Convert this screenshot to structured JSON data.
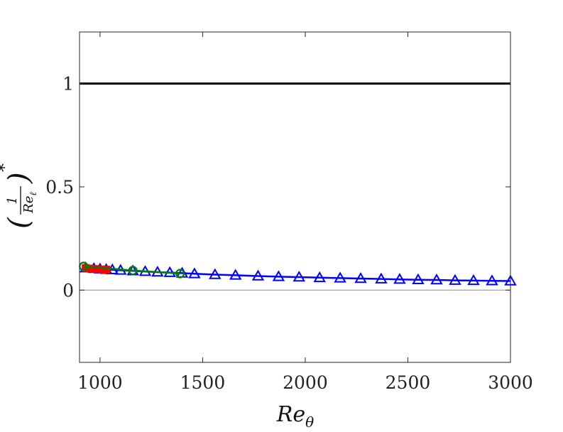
{
  "chart_data": {
    "type": "line",
    "xlabel_base": "Re",
    "xlabel_sub": "θ",
    "ylabel_base": "Re",
    "ylabel_sub": "ℓ",
    "ylabel_num": "1",
    "ylabel_sup": "*",
    "xlim": [
      900,
      3000
    ],
    "ylim": [
      -0.35,
      1.25
    ],
    "x_ticks": [
      1000,
      1500,
      2000,
      2500,
      3000
    ],
    "x_tick_labels": [
      "1000",
      "1500",
      "2000",
      "2500",
      "3000"
    ],
    "y_ticks": [
      0,
      0.5,
      1
    ],
    "y_tick_labels": [
      "0",
      "0.5",
      "1"
    ],
    "grid": false,
    "reference_lines": [
      {
        "y": 1,
        "color": "#000000"
      },
      {
        "y": 0,
        "color": "#888888"
      }
    ],
    "series": [
      {
        "color": "#0000ff",
        "marker": "triangle",
        "x": [
          930,
          970,
          1000,
          1030,
          1060,
          1100,
          1160,
          1220,
          1280,
          1340,
          1400,
          1460,
          1560,
          1660,
          1770,
          1870,
          1970,
          2070,
          2170,
          2270,
          2370,
          2460,
          2550,
          2640,
          2730,
          2820,
          2910,
          3000
        ],
        "y": [
          0.107,
          0.104,
          0.102,
          0.1,
          0.098,
          0.096,
          0.093,
          0.09,
          0.087,
          0.085,
          0.082,
          0.079,
          0.075,
          0.072,
          0.068,
          0.065,
          0.063,
          0.06,
          0.058,
          0.056,
          0.054,
          0.052,
          0.05,
          0.049,
          0.047,
          0.046,
          0.045,
          0.044
        ]
      },
      {
        "color": "#ff0000",
        "marker": "square",
        "x": [
          930,
          950,
          980,
          1010,
          1030
        ],
        "y": [
          0.107,
          0.104,
          0.102,
          0.1,
          0.099
        ]
      },
      {
        "color": "#008000",
        "marker": "circle",
        "x": [
          920,
          1160,
          1390
        ],
        "y": [
          0.115,
          0.095,
          0.08
        ]
      }
    ]
  }
}
